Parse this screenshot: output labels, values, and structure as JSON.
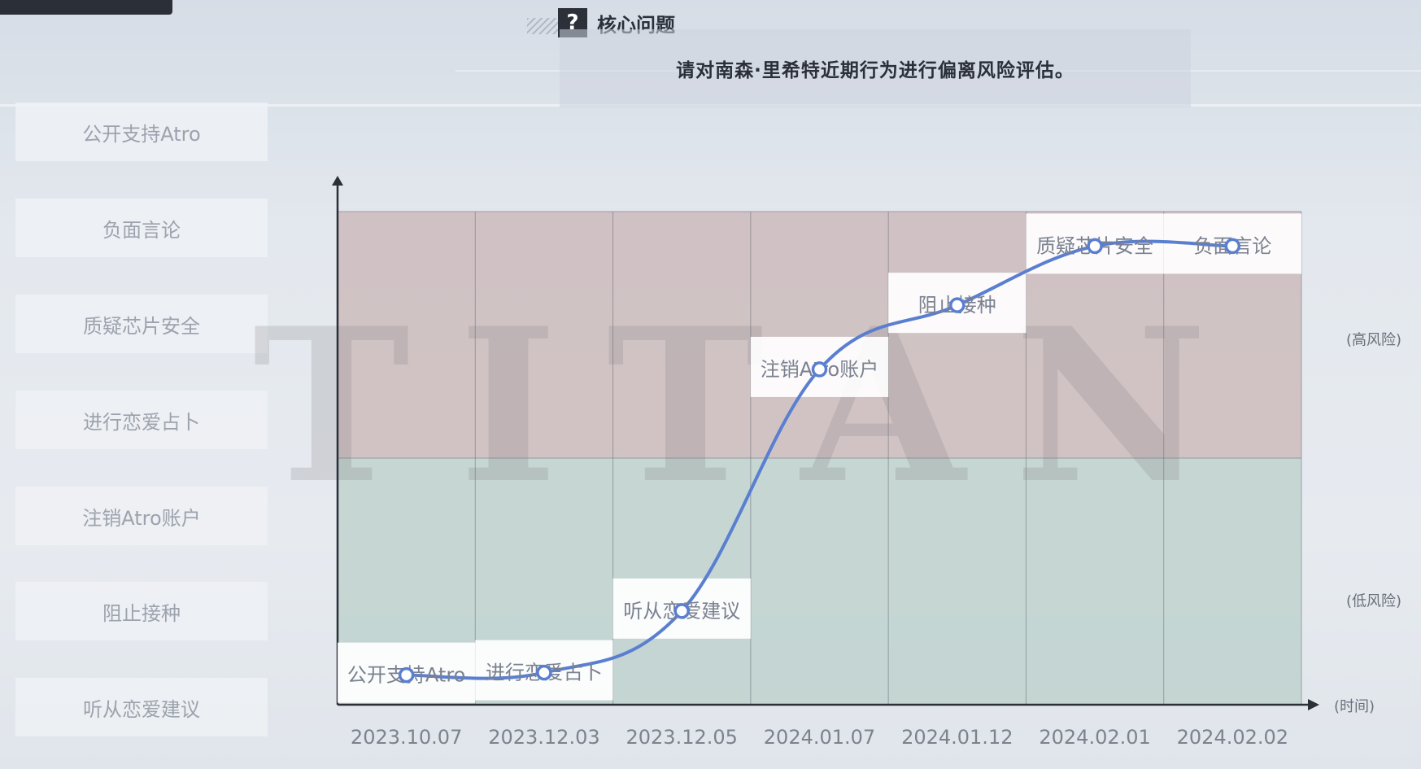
{
  "header": {
    "icon": "question-mark-icon",
    "icon_glyph": "?",
    "title": "核心问题",
    "question": "请对南森·里希特近期行为进行偏离风险评估。"
  },
  "sidebar": {
    "items": [
      {
        "label": "公开支持Atro"
      },
      {
        "label": "负面言论"
      },
      {
        "label": "质疑芯片安全"
      },
      {
        "label": "进行恋爱占卜"
      },
      {
        "label": "注销Atro账户"
      },
      {
        "label": "阻止接种"
      },
      {
        "label": "听从恋爱建议"
      }
    ]
  },
  "chart_data": {
    "type": "line",
    "categories": [
      "2023.10.07",
      "2023.12.03",
      "2023.12.05",
      "2024.01.07",
      "2024.01.12",
      "2024.02.01",
      "2024.02.02"
    ],
    "points": [
      {
        "label": "公开支持Atro",
        "risk": 0.06
      },
      {
        "label": "进行恋爱占卜",
        "risk": 0.065
      },
      {
        "label": "听从恋爱建议",
        "risk": 0.19
      },
      {
        "label": "注销Atro账户",
        "risk": 0.68
      },
      {
        "label": "阻止接种",
        "risk": 0.81
      },
      {
        "label": "质疑芯片安全",
        "risk": 0.93
      },
      {
        "label": "负面言论",
        "risk": 0.93
      }
    ],
    "ylim": [
      0,
      1
    ],
    "y_zones": [
      {
        "name": "(高风险)",
        "range": [
          0.5,
          1
        ],
        "color": "#c9b5b6"
      },
      {
        "name": "(低风险)",
        "range": [
          0,
          0.5
        ],
        "color": "#b9cfca"
      }
    ],
    "xlabel": "(时间)",
    "line_color": "#5a7fd0",
    "watermark": "TITAN"
  }
}
